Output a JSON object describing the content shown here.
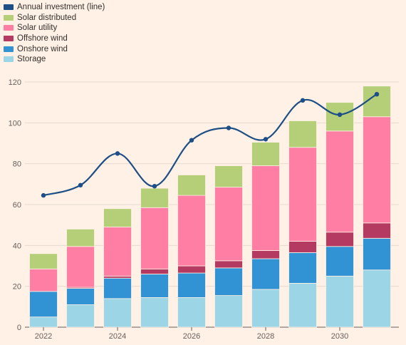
{
  "legend": [
    {
      "label": "Annual investment (line)",
      "color": "#1d4f86",
      "kind": "line"
    },
    {
      "label": "Solar distributed",
      "color": "#b5cf78",
      "kind": "bar"
    },
    {
      "label": "Solar utility",
      "color": "#ff7fa4",
      "kind": "bar"
    },
    {
      "label": "Offshore wind",
      "color": "#b43a62",
      "kind": "bar"
    },
    {
      "label": "Onshore wind",
      "color": "#3193d4",
      "kind": "bar"
    },
    {
      "label": "Storage",
      "color": "#9cd6e6",
      "kind": "bar"
    }
  ],
  "chart_data": {
    "type": "bar",
    "stacked": true,
    "categories": [
      "2022",
      "2023",
      "2024",
      "2025",
      "2026",
      "2027",
      "2028",
      "2029",
      "2030",
      "2031"
    ],
    "x_tick_labels": [
      "2022",
      "2024",
      "2026",
      "2028",
      "2030"
    ],
    "ylim": [
      0,
      120
    ],
    "y_ticks": [
      0,
      20,
      40,
      60,
      80,
      100,
      120
    ],
    "grid": true,
    "series": [
      {
        "name": "Storage",
        "color": "#9cd6e6",
        "values": [
          5,
          11,
          14,
          14.5,
          14.5,
          15.5,
          18.5,
          21.5,
          25,
          28
        ]
      },
      {
        "name": "Onshore wind",
        "color": "#3193d4",
        "values": [
          12.5,
          8,
          10,
          11.5,
          12,
          13.5,
          15,
          15,
          14.5,
          15.5
        ]
      },
      {
        "name": "Offshore wind",
        "color": "#b43a62",
        "values": [
          0,
          0.5,
          1,
          2.5,
          3.5,
          3.5,
          4,
          5.5,
          7,
          7.5
        ]
      },
      {
        "name": "Solar utility",
        "color": "#ff7fa4",
        "values": [
          11,
          20,
          24,
          30,
          34.5,
          36,
          41.5,
          46,
          49.5,
          52
        ]
      },
      {
        "name": "Solar distributed",
        "color": "#b5cf78",
        "values": [
          7.5,
          8.5,
          9,
          9.5,
          10,
          10.5,
          11.5,
          13,
          14,
          15
        ]
      }
    ],
    "line": {
      "name": "Annual investment (line)",
      "color": "#1d4f86",
      "values": [
        64.5,
        69.5,
        85,
        69,
        91.5,
        97.5,
        92,
        111,
        104,
        114
      ]
    }
  }
}
